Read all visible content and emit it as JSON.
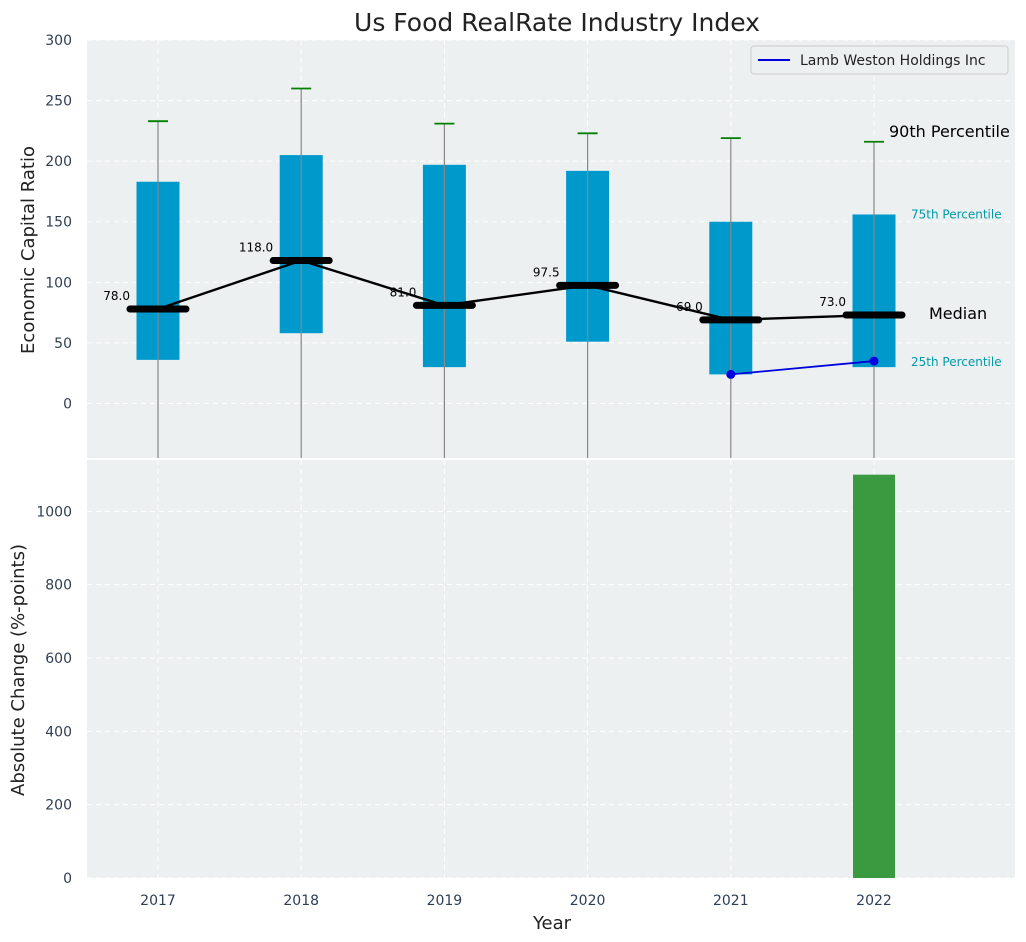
{
  "chart_data": [
    {
      "type": "box",
      "title": "Us Food RealRate Industry Index",
      "xlabel": "",
      "ylabel": "Economic Capital Ratio",
      "ylim": [
        -45,
        300
      ],
      "yticks": [
        0,
        50,
        100,
        150,
        200,
        250,
        300
      ],
      "grid": true,
      "categories": [
        "2017",
        "2018",
        "2019",
        "2020",
        "2021",
        "2022"
      ],
      "p25": [
        36,
        58,
        30,
        51,
        24,
        30
      ],
      "p75": [
        183,
        205,
        197,
        192,
        150,
        156
      ],
      "p90": [
        233,
        260,
        231,
        223,
        219,
        216
      ],
      "median": [
        78.0,
        118.0,
        81.0,
        97.5,
        69.0,
        73.0
      ],
      "median_labels": [
        "78.0",
        "118.0",
        "81.0",
        "97.5",
        "69.0",
        "73.0"
      ],
      "series": [
        {
          "name": "Lamb Weston Holdings Inc",
          "x": [
            "2021",
            "2022"
          ],
          "values": [
            24,
            35
          ]
        }
      ],
      "legend": {
        "position": "top-right",
        "entries": [
          "Lamb Weston Holdings Inc"
        ]
      },
      "annotations": {
        "p90": "90th Percentile",
        "p75": "75th Percentile",
        "median": "Median",
        "p25": "25th Percentile"
      }
    },
    {
      "type": "bar",
      "xlabel": "Year",
      "ylabel": "Absolute Change (%-points)",
      "ylim": [
        0,
        1140
      ],
      "yticks": [
        0,
        200,
        400,
        600,
        800,
        1000
      ],
      "grid": true,
      "categories": [
        "2017",
        "2018",
        "2019",
        "2020",
        "2021",
        "2022"
      ],
      "values": [
        0,
        0,
        0,
        0,
        0,
        1100
      ]
    }
  ],
  "colors": {
    "background": "#ecf0f1",
    "box": "#0099cc",
    "whisker": "#888888",
    "cap": "#008000",
    "median": "#000000",
    "company": "#0000dd",
    "bar": "#3a9a3f",
    "p75_label": "#0099aa",
    "p25_label": "#0099aa"
  }
}
